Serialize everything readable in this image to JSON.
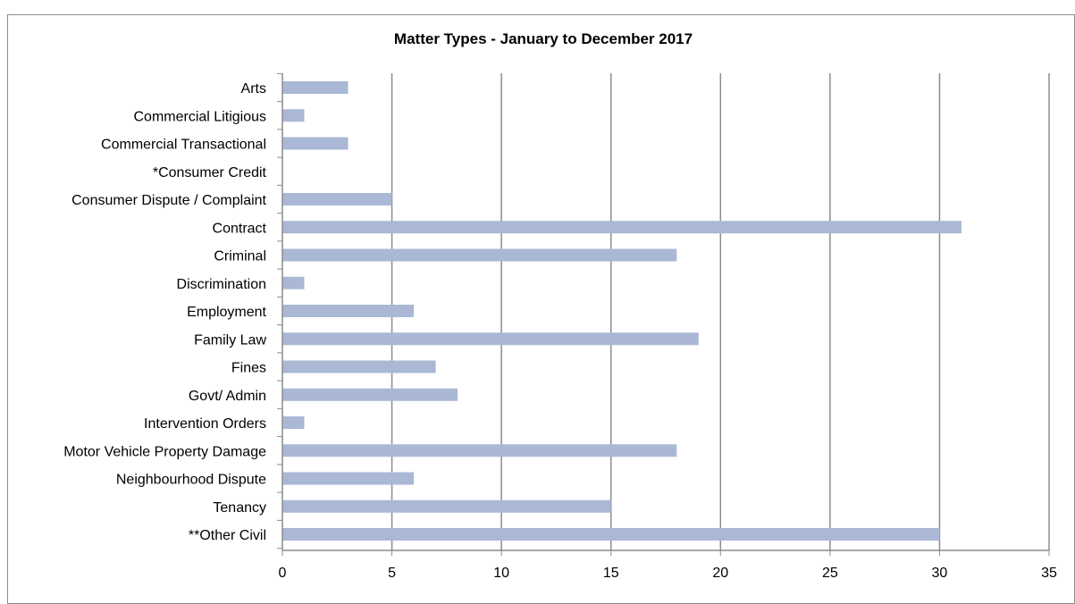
{
  "chart_data": {
    "type": "bar",
    "orientation": "horizontal",
    "title": "Matter Types - January  to December 2017",
    "xlabel": "",
    "ylabel": "",
    "xlim": [
      0,
      35
    ],
    "x_ticks": [
      0,
      5,
      10,
      15,
      20,
      25,
      30,
      35
    ],
    "grid": true,
    "legend": "none",
    "bar_color": "#aab8d6",
    "categories": [
      "Arts",
      "Commercial Litigious",
      "Commercial Transactional",
      "*Consumer Credit",
      "Consumer Dispute / Complaint",
      "Contract",
      "Criminal",
      "Discrimination",
      "Employment",
      "Family Law",
      "Fines",
      "Govt/ Admin",
      "Intervention Orders",
      "Motor Vehicle Property Damage",
      "Neighbourhood Dispute",
      "Tenancy",
      "**Other Civil"
    ],
    "values": [
      3,
      1,
      3,
      0,
      5,
      31,
      18,
      1,
      6,
      19,
      7,
      8,
      1,
      18,
      6,
      15,
      30
    ]
  }
}
